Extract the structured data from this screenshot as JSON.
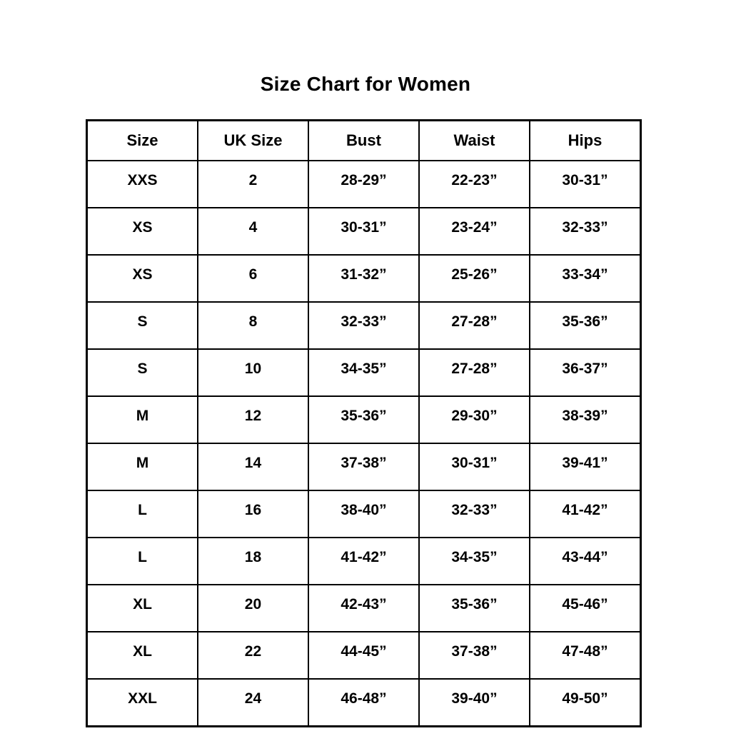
{
  "page": {
    "title": "Size Chart for Women"
  },
  "size_table": {
    "columns": [
      "Size",
      "UK Size",
      "Bust",
      "Waist",
      "Hips"
    ],
    "rows": [
      [
        "XXS",
        "2",
        "28-29”",
        "22-23”",
        "30-31”"
      ],
      [
        "XS",
        "4",
        "30-31”",
        "23-24”",
        "32-33”"
      ],
      [
        "XS",
        "6",
        "31-32”",
        "25-26”",
        "33-34”"
      ],
      [
        "S",
        "8",
        "32-33”",
        "27-28”",
        "35-36”"
      ],
      [
        "S",
        "10",
        "34-35”",
        "27-28”",
        "36-37”"
      ],
      [
        "M",
        "12",
        "35-36”",
        "29-30”",
        "38-39”"
      ],
      [
        "M",
        "14",
        "37-38”",
        "30-31”",
        "39-41”"
      ],
      [
        "L",
        "16",
        "38-40”",
        "32-33”",
        "41-42”"
      ],
      [
        "L",
        "18",
        "41-42”",
        "34-35”",
        "43-44”"
      ],
      [
        "XL",
        "20",
        "42-43”",
        "35-36”",
        "45-46”"
      ],
      [
        "XL",
        "22",
        "44-45”",
        "37-38”",
        "47-48”"
      ],
      [
        "XXL",
        "24",
        "46-48”",
        "39-40”",
        "49-50”"
      ]
    ]
  },
  "colors": {
    "background": "#ffffff",
    "border": "#000000",
    "text": "#000000"
  }
}
